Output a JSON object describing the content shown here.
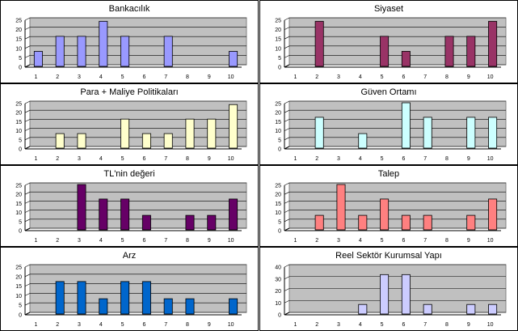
{
  "chart_data": [
    {
      "type": "bar",
      "title": "Bankacılık",
      "categories": [
        "1",
        "2",
        "3",
        "4",
        "5",
        "6",
        "7",
        "8",
        "9",
        "10"
      ],
      "values": [
        8,
        16,
        16,
        24,
        16,
        0,
        16,
        0,
        0,
        8
      ],
      "ylim": [
        0,
        25
      ],
      "yticks": [
        0,
        5,
        10,
        15,
        20,
        25
      ],
      "color": "#9999ff",
      "grid": true
    },
    {
      "type": "bar",
      "title": "Siyaset",
      "categories": [
        "1",
        "2",
        "3",
        "4",
        "5",
        "6",
        "7",
        "8",
        "9",
        "10"
      ],
      "values": [
        0,
        24,
        0,
        0,
        16,
        8,
        0,
        16,
        16,
        24
      ],
      "ylim": [
        0,
        25
      ],
      "yticks": [
        0,
        5,
        10,
        15,
        20,
        25
      ],
      "color": "#993366",
      "grid": true
    },
    {
      "type": "bar",
      "title": "Para + Maliye Politikaları",
      "categories": [
        "1",
        "2",
        "3",
        "4",
        "5",
        "6",
        "7",
        "8",
        "9",
        "10"
      ],
      "values": [
        0,
        8,
        8,
        0,
        16,
        8,
        8,
        16,
        16,
        24
      ],
      "ylim": [
        0,
        25
      ],
      "yticks": [
        0,
        5,
        10,
        15,
        20,
        25
      ],
      "color": "#ffffcc",
      "grid": true
    },
    {
      "type": "bar",
      "title": "Güven Ortamı",
      "categories": [
        "1",
        "2",
        "3",
        "4",
        "5",
        "6",
        "7",
        "8",
        "9",
        "10"
      ],
      "values": [
        0,
        17,
        0,
        8,
        0,
        25,
        17,
        0,
        17,
        17
      ],
      "ylim": [
        0,
        25
      ],
      "yticks": [
        0,
        5,
        10,
        15,
        20,
        25
      ],
      "color": "#ccffff",
      "grid": true
    },
    {
      "type": "bar",
      "title": "TL'nin değeri",
      "categories": [
        "1",
        "2",
        "3",
        "4",
        "5",
        "6",
        "7",
        "8",
        "9",
        "10"
      ],
      "values": [
        0,
        0,
        25,
        17,
        17,
        8,
        0,
        8,
        8,
        17
      ],
      "ylim": [
        0,
        25
      ],
      "yticks": [
        0,
        5,
        10,
        15,
        20,
        25
      ],
      "color": "#660066",
      "grid": true
    },
    {
      "type": "bar",
      "title": "Talep",
      "categories": [
        "1",
        "2",
        "3",
        "4",
        "5",
        "6",
        "7",
        "8",
        "9",
        "10"
      ],
      "values": [
        0,
        8,
        25,
        8,
        17,
        8,
        8,
        0,
        8,
        17
      ],
      "ylim": [
        0,
        25
      ],
      "yticks": [
        0,
        5,
        10,
        15,
        20,
        25
      ],
      "color": "#ff8080",
      "grid": true
    },
    {
      "type": "bar",
      "title": "Arz",
      "categories": [
        "1",
        "2",
        "3",
        "4",
        "5",
        "6",
        "7",
        "8",
        "9",
        "10"
      ],
      "values": [
        0,
        17,
        17,
        8,
        17,
        17,
        8,
        8,
        0,
        8
      ],
      "ylim": [
        0,
        25
      ],
      "yticks": [
        0,
        5,
        10,
        15,
        20,
        25
      ],
      "color": "#0066cc",
      "grid": true
    },
    {
      "type": "bar",
      "title": "Reel Sektör Kurumsal Yapı",
      "categories": [
        "1",
        "2",
        "3",
        "4",
        "5",
        "6",
        "7",
        "8",
        "9",
        "10"
      ],
      "values": [
        0,
        0,
        0,
        8,
        33,
        33,
        8,
        0,
        8,
        8
      ],
      "ylim": [
        0,
        40
      ],
      "yticks": [
        0,
        10,
        20,
        30,
        40
      ],
      "color": "#ccccff",
      "grid": true
    }
  ]
}
